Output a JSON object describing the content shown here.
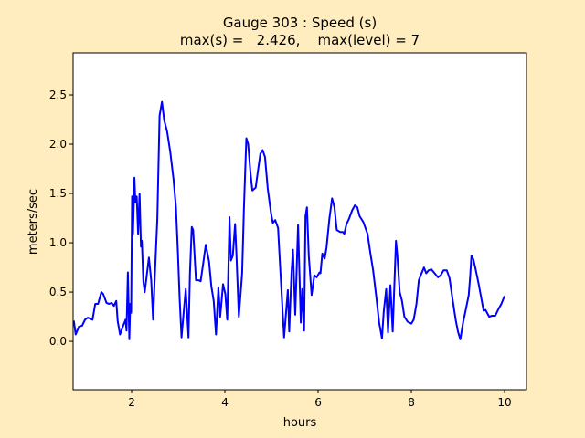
{
  "chart_data": {
    "type": "line",
    "title": "Gauge 303 : Speed (s)",
    "subtitle": "max(s) =   2.426,    max(level) = 7",
    "xlabel": "hours",
    "ylabel": "meters/sec",
    "xlim": [
      0.745,
      10.47
    ],
    "ylim": [
      -0.49,
      2.926
    ],
    "xticks": [
      2,
      4,
      6,
      8,
      10
    ],
    "xtick_labels": [
      "2",
      "4",
      "6",
      "8",
      "10"
    ],
    "yticks": [
      0.0,
      0.5,
      1.0,
      1.5,
      2.0,
      2.5
    ],
    "ytick_labels": [
      "0.0",
      "0.5",
      "1.0",
      "1.5",
      "2.0",
      "2.5"
    ],
    "grid": false,
    "line_color": "#0000ff",
    "series": [
      {
        "name": "speed",
        "x": [
          0.76,
          0.8,
          0.87,
          0.94,
          1.0,
          1.06,
          1.16,
          1.22,
          1.28,
          1.35,
          1.39,
          1.46,
          1.52,
          1.57,
          1.62,
          1.67,
          1.7,
          1.75,
          1.82,
          1.87,
          1.89,
          1.92,
          1.95,
          1.97,
          1.99,
          2.01,
          2.03,
          2.06,
          2.08,
          2.11,
          2.14,
          2.17,
          2.2,
          2.22,
          2.25,
          2.28,
          2.32,
          2.37,
          2.42,
          2.46,
          2.5,
          2.55,
          2.6,
          2.65,
          2.7,
          2.76,
          2.83,
          2.9,
          2.95,
          2.99,
          3.03,
          3.07,
          3.12,
          3.16,
          3.22,
          3.25,
          3.29,
          3.32,
          3.38,
          3.44,
          3.48,
          3.54,
          3.59,
          3.66,
          3.71,
          3.76,
          3.81,
          3.86,
          3.9,
          3.96,
          4.01,
          4.05,
          4.1,
          4.13,
          4.17,
          4.22,
          4.25,
          4.3,
          4.37,
          4.41,
          4.46,
          4.5,
          4.55,
          4.59,
          4.66,
          4.71,
          4.76,
          4.81,
          4.86,
          4.92,
          4.99,
          5.03,
          5.08,
          5.14,
          5.19,
          5.27,
          5.35,
          5.38,
          5.43,
          5.46,
          5.51,
          5.57,
          5.63,
          5.66,
          5.7,
          5.73,
          5.76,
          5.8,
          5.86,
          5.92,
          5.97,
          6.03,
          6.05,
          6.09,
          6.14,
          6.18,
          6.24,
          6.3,
          6.35,
          6.4,
          6.47,
          6.53,
          6.56,
          6.61,
          6.66,
          6.73,
          6.79,
          6.84,
          6.89,
          6.97,
          7.06,
          7.12,
          7.18,
          7.25,
          7.31,
          7.37,
          7.41,
          7.46,
          7.5,
          7.55,
          7.6,
          7.67,
          7.7,
          7.75,
          7.8,
          7.85,
          7.92,
          8.0,
          8.05,
          8.11,
          8.16,
          8.22,
          8.27,
          8.32,
          8.37,
          8.43,
          8.5,
          8.57,
          8.63,
          8.69,
          8.76,
          8.82,
          8.88,
          8.95,
          9.0,
          9.05,
          9.11,
          9.18,
          9.23,
          9.26,
          9.29,
          9.33,
          9.37,
          9.44,
          9.5,
          9.55,
          9.59,
          9.67,
          9.73,
          9.8,
          9.86,
          9.93,
          10.0
        ],
        "y": [
          0.21,
          0.07,
          0.15,
          0.16,
          0.22,
          0.24,
          0.22,
          0.38,
          0.38,
          0.5,
          0.48,
          0.39,
          0.38,
          0.39,
          0.36,
          0.41,
          0.21,
          0.07,
          0.16,
          0.22,
          0.11,
          0.7,
          0.02,
          0.38,
          0.29,
          1.47,
          1.09,
          1.66,
          1.41,
          1.47,
          1.09,
          1.5,
          0.96,
          1.02,
          0.61,
          0.5,
          0.65,
          0.85,
          0.62,
          0.22,
          0.69,
          1.24,
          2.29,
          2.43,
          2.24,
          2.13,
          1.92,
          1.64,
          1.36,
          0.93,
          0.44,
          0.04,
          0.31,
          0.53,
          0.04,
          0.69,
          1.16,
          1.13,
          0.62,
          0.62,
          0.61,
          0.81,
          0.98,
          0.81,
          0.56,
          0.41,
          0.07,
          0.55,
          0.25,
          0.58,
          0.48,
          0.22,
          1.26,
          0.82,
          0.87,
          1.19,
          0.85,
          0.25,
          0.69,
          1.36,
          2.06,
          2.0,
          1.7,
          1.53,
          1.56,
          1.73,
          1.9,
          1.94,
          1.87,
          1.55,
          1.3,
          1.2,
          1.23,
          1.15,
          0.72,
          0.04,
          0.52,
          0.1,
          0.69,
          0.93,
          0.27,
          1.18,
          0.19,
          0.53,
          0.11,
          1.27,
          1.36,
          0.87,
          0.47,
          0.67,
          0.65,
          0.7,
          0.69,
          0.89,
          0.84,
          0.95,
          1.24,
          1.45,
          1.36,
          1.13,
          1.11,
          1.11,
          1.09,
          1.19,
          1.24,
          1.33,
          1.38,
          1.36,
          1.27,
          1.21,
          1.09,
          0.9,
          0.72,
          0.44,
          0.19,
          0.03,
          0.31,
          0.53,
          0.09,
          0.57,
          0.1,
          1.02,
          0.87,
          0.5,
          0.41,
          0.25,
          0.2,
          0.18,
          0.22,
          0.38,
          0.62,
          0.69,
          0.75,
          0.69,
          0.72,
          0.73,
          0.69,
          0.65,
          0.67,
          0.72,
          0.72,
          0.64,
          0.44,
          0.22,
          0.1,
          0.02,
          0.19,
          0.35,
          0.47,
          0.65,
          0.87,
          0.83,
          0.75,
          0.59,
          0.44,
          0.31,
          0.32,
          0.25,
          0.26,
          0.26,
          0.32,
          0.38,
          0.46
        ]
      }
    ]
  }
}
